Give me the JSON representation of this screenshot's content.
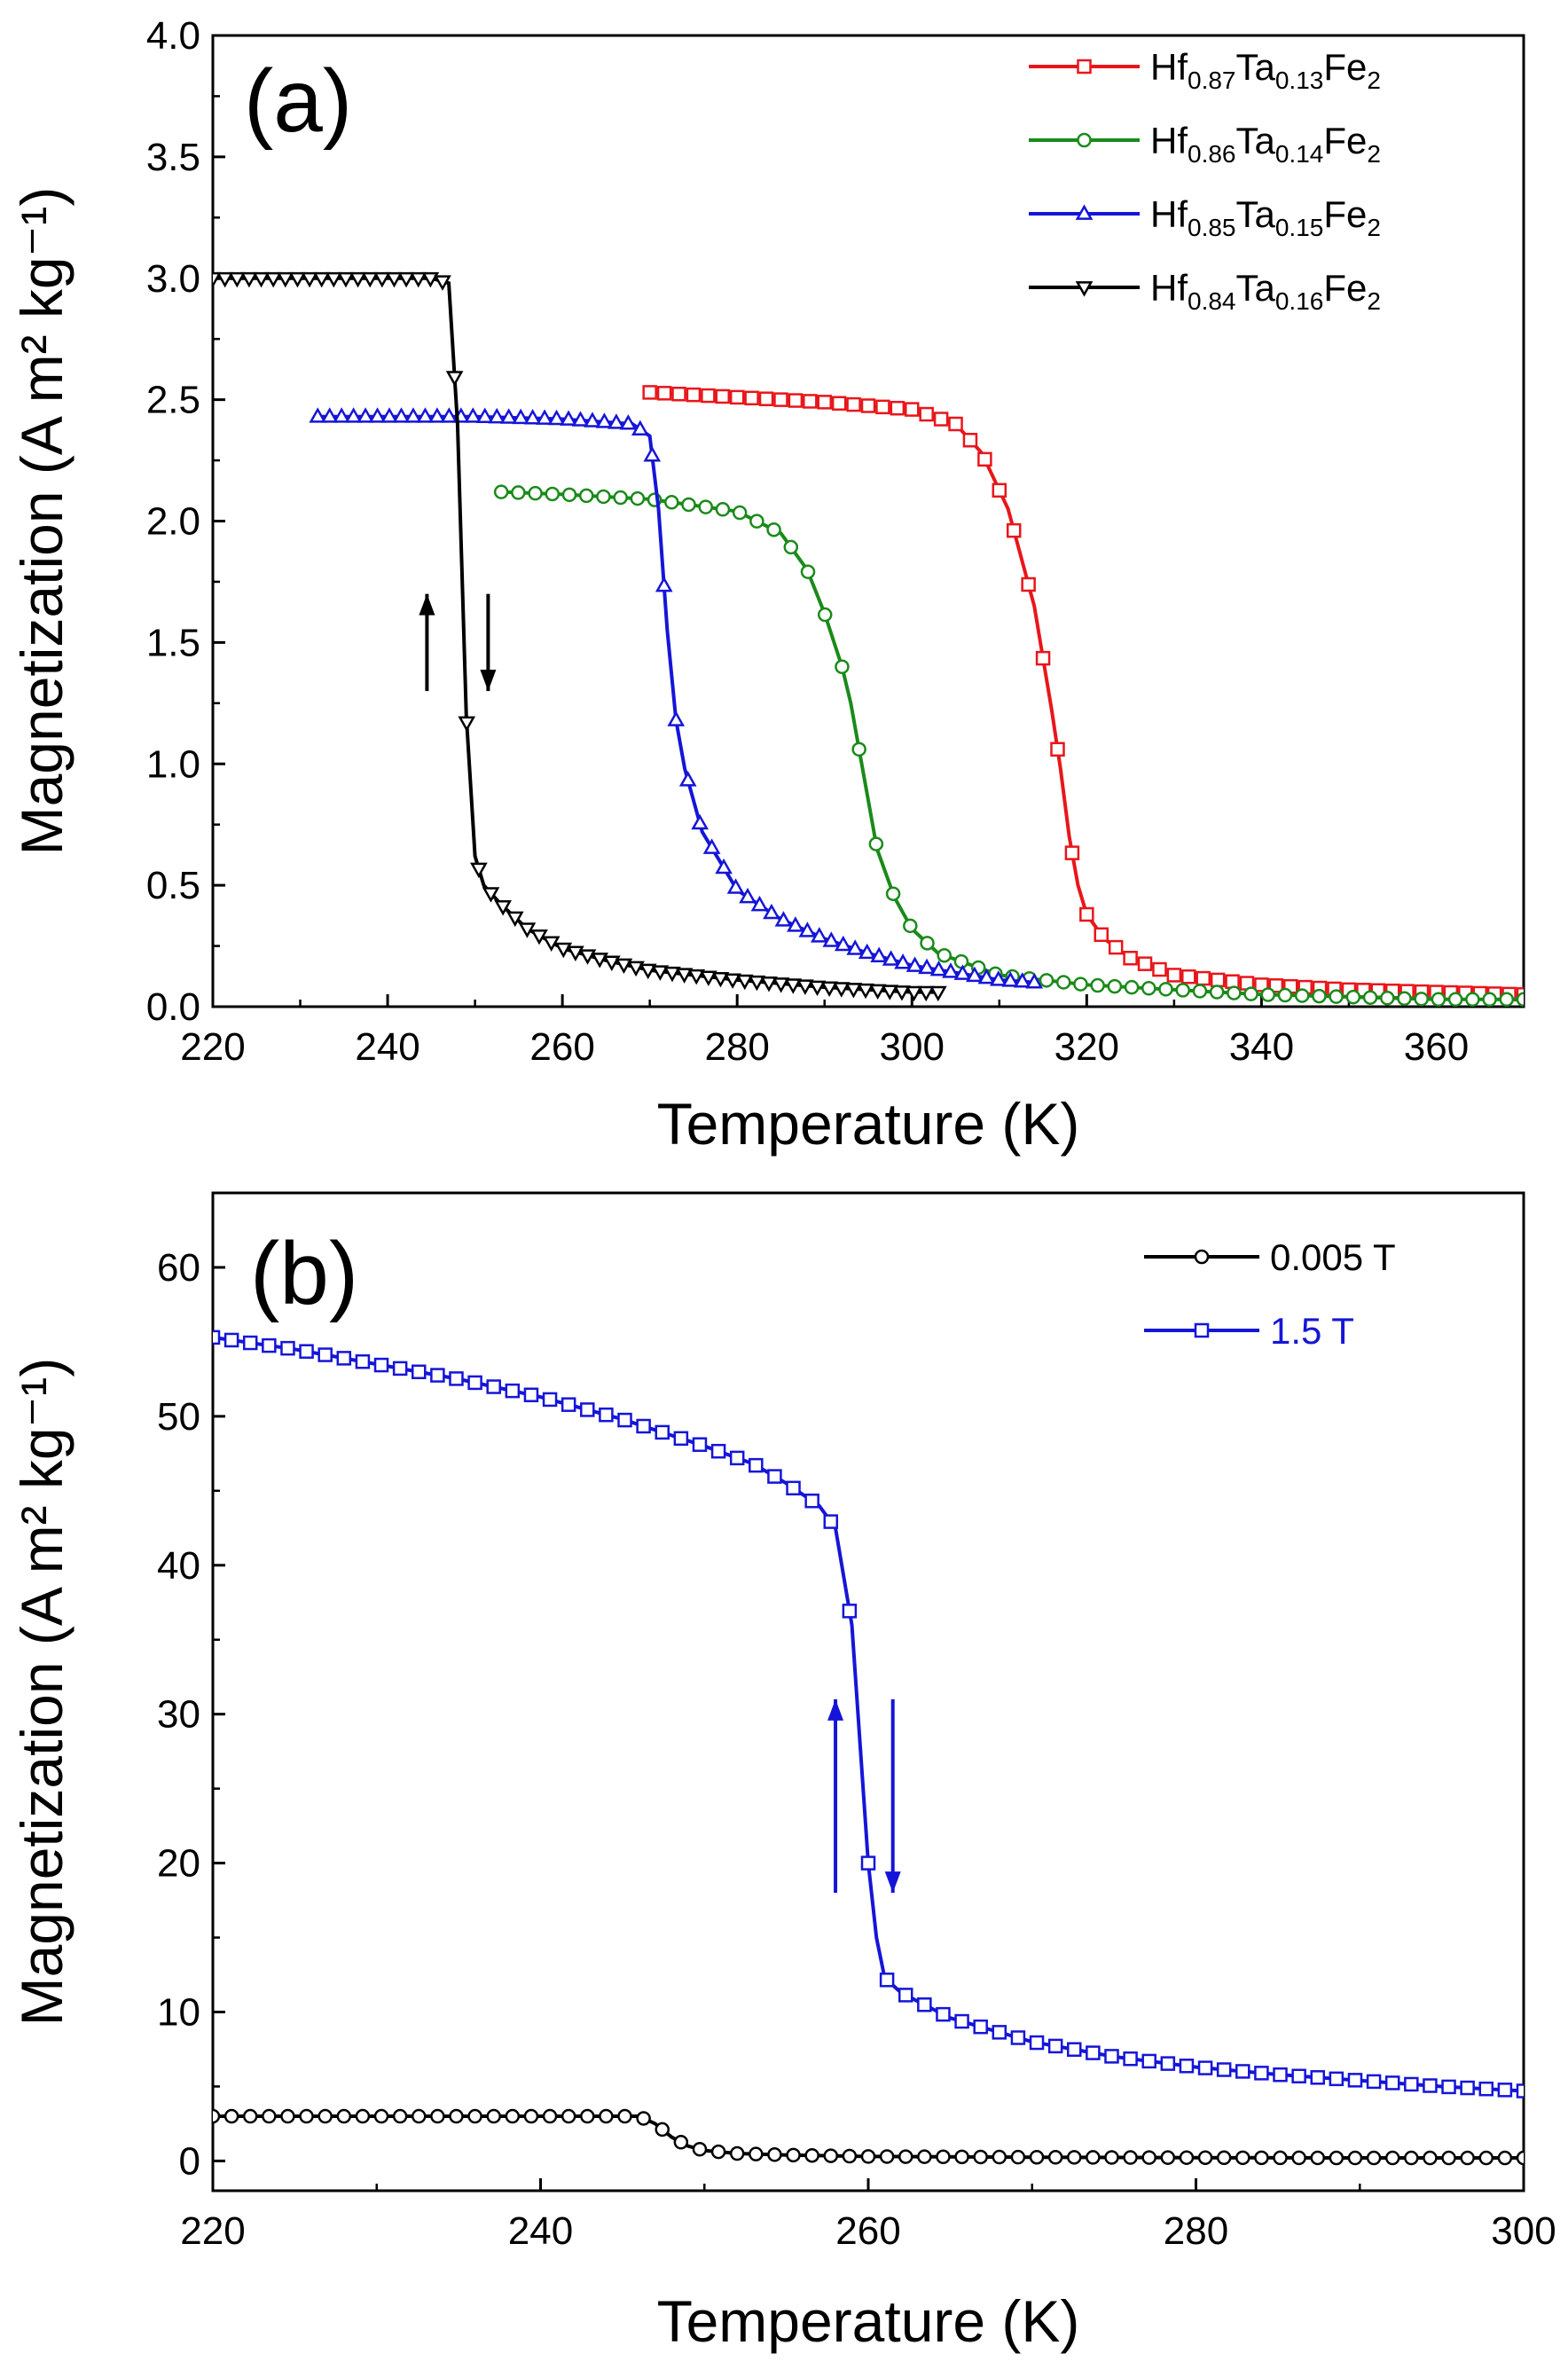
{
  "chart_data": [
    {
      "panel_label": "(a)",
      "type": "line",
      "xlabel": "Temperature (K)",
      "ylabel": "Magnetization (A m² kg⁻¹)",
      "xlim": [
        220,
        370
      ],
      "ylim": [
        0.0,
        4.0
      ],
      "xticks": [
        "220",
        "240",
        "260",
        "280",
        "300",
        "320",
        "340",
        "360"
      ],
      "yticks": [
        "0.0",
        "0.5",
        "1.0",
        "1.5",
        "2.0",
        "2.5",
        "3.0",
        "3.5",
        "4.0"
      ],
      "legend_position": "top-right",
      "series": [
        {
          "name": "Hf0.87Ta0.13Fe2",
          "legend": {
            "a": "Hf",
            "s1": "0.87",
            "b": "Ta",
            "s2": "0.13",
            "c": "Fe",
            "s3": "2"
          },
          "color": "#e8161b",
          "marker": "square",
          "x": [
            270,
            280,
            290,
            300,
            305,
            308,
            311,
            314,
            316,
            317,
            318,
            319,
            320,
            322,
            325,
            330,
            340,
            350,
            360,
            370
          ],
          "y": [
            2.53,
            2.51,
            2.49,
            2.46,
            2.4,
            2.28,
            2.05,
            1.65,
            1.22,
            0.98,
            0.7,
            0.5,
            0.38,
            0.28,
            0.2,
            0.13,
            0.09,
            0.07,
            0.06,
            0.05
          ]
        },
        {
          "name": "Hf0.86Ta0.14Fe2",
          "legend": {
            "a": "Hf",
            "s1": "0.86",
            "b": "Ta",
            "s2": "0.14",
            "c": "Fe",
            "s3": "2"
          },
          "color": "#1a8a1a",
          "marker": "circle",
          "x": [
            253,
            260,
            270,
            280,
            285,
            288,
            290,
            292,
            293,
            294,
            295,
            296,
            298,
            300,
            303,
            310,
            320,
            330,
            340,
            350,
            360,
            370
          ],
          "y": [
            2.12,
            2.11,
            2.09,
            2.04,
            1.95,
            1.8,
            1.62,
            1.4,
            1.25,
            1.05,
            0.85,
            0.65,
            0.45,
            0.32,
            0.22,
            0.13,
            0.09,
            0.07,
            0.05,
            0.04,
            0.03,
            0.03
          ]
        },
        {
          "name": "Hf0.85Ta0.15Fe2",
          "legend": {
            "a": "Hf",
            "s1": "0.85",
            "b": "Ta",
            "s2": "0.15",
            "c": "Fe",
            "s3": "2"
          },
          "color": "#1515d8",
          "marker": "triangle-up",
          "x": [
            232,
            240,
            250,
            260,
            268,
            270,
            271,
            272,
            273,
            274,
            276,
            280,
            285,
            290,
            295,
            300,
            305,
            310,
            314
          ],
          "y": [
            2.43,
            2.43,
            2.43,
            2.42,
            2.4,
            2.35,
            2.05,
            1.55,
            1.18,
            0.98,
            0.72,
            0.48,
            0.36,
            0.28,
            0.22,
            0.17,
            0.14,
            0.11,
            0.1
          ]
        },
        {
          "name": "Hf0.84Ta0.16Fe2",
          "legend": {
            "a": "Hf",
            "s1": "0.84",
            "b": "Ta",
            "s2": "0.16",
            "c": "Fe",
            "s3": "2"
          },
          "color": "#000000",
          "marker": "triangle-down",
          "x": [
            220,
            230,
            240,
            245,
            247,
            248,
            249,
            250,
            251,
            253,
            256,
            260,
            265,
            270,
            280,
            290,
            300,
            303
          ],
          "y": [
            3.0,
            3.0,
            3.0,
            3.0,
            2.98,
            2.4,
            1.2,
            0.62,
            0.5,
            0.42,
            0.32,
            0.24,
            0.19,
            0.15,
            0.11,
            0.08,
            0.06,
            0.06
          ]
        }
      ]
    },
    {
      "panel_label": "(b)",
      "type": "line",
      "xlabel": "Temperature (K)",
      "ylabel": "Magnetization (A m² kg⁻¹)",
      "xlim": [
        220,
        300
      ],
      "ylim": [
        -2,
        65
      ],
      "xticks": [
        "220",
        "240",
        "260",
        "280",
        "300"
      ],
      "yticks": [
        "0",
        "10",
        "20",
        "30",
        "40",
        "50",
        "60"
      ],
      "legend_position": "top-right",
      "series": [
        {
          "name": "0.005 T",
          "color": "#000000",
          "marker": "circle",
          "x": [
            220,
            230,
            240,
            246,
            247,
            248,
            249,
            250,
            252,
            255,
            260,
            270,
            280,
            290,
            300
          ],
          "y": [
            3.0,
            3.0,
            3.0,
            3.0,
            2.5,
            1.6,
            1.0,
            0.7,
            0.5,
            0.4,
            0.3,
            0.25,
            0.22,
            0.2,
            0.2
          ]
        },
        {
          "name": "1.5 T",
          "color": "#1515d8",
          "marker": "square",
          "x": [
            220,
            225,
            230,
            235,
            240,
            245,
            250,
            253,
            255,
            257,
            258,
            259,
            259.5,
            260,
            260.5,
            261,
            262,
            265,
            270,
            275,
            280,
            285,
            290,
            295,
            300
          ],
          "y": [
            55.3,
            54.5,
            53.5,
            52.5,
            51.3,
            49.8,
            48.0,
            46.8,
            45.5,
            44.0,
            42.5,
            36.0,
            28.0,
            20.0,
            15.0,
            12.3,
            11.3,
            9.6,
            8.0,
            7.0,
            6.3,
            5.8,
            5.4,
            5.0,
            4.7
          ]
        }
      ]
    }
  ]
}
